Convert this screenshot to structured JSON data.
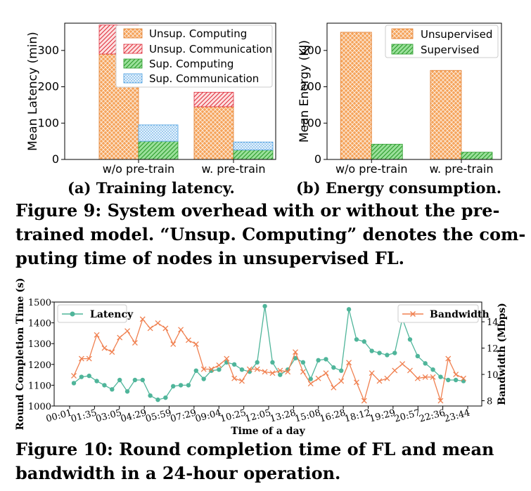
{
  "chart_data": [
    {
      "type": "bar",
      "stacked": true,
      "categories": [
        "w/o pre-train",
        "w. pre-train"
      ],
      "ylabel": "Mean Latency (min)",
      "ylim": [
        0,
        375
      ],
      "yticks": [
        0,
        100,
        200,
        300
      ],
      "series": [
        {
          "name": "Unsup. Computing",
          "group": "unsupervised",
          "values": [
            290,
            145
          ],
          "color": "#f5a35a",
          "hatch": "cross"
        },
        {
          "name": "Unsup. Communication",
          "group": "unsupervised",
          "values": [
            80,
            40
          ],
          "color": "#e8394a",
          "hatch": "diag"
        },
        {
          "name": "Sup. Computing",
          "group": "supervised",
          "values": [
            50,
            26
          ],
          "color": "#3fbf3f",
          "hatch": "diag"
        },
        {
          "name": "Sup. Communication",
          "group": "supervised",
          "values": [
            45,
            22
          ],
          "color": "#56aee8",
          "hatch": "dots"
        }
      ],
      "subcaption": "(a) Training latency."
    },
    {
      "type": "bar",
      "categories": [
        "w/o pre-train",
        "w. pre-train"
      ],
      "ylabel": "Mean Energy (KJ)",
      "ylim": [
        0,
        375
      ],
      "yticks": [
        0,
        100,
        200,
        300
      ],
      "series": [
        {
          "name": "Unsupervised",
          "values": [
            350,
            245
          ],
          "color": "#f5a35a",
          "hatch": "cross"
        },
        {
          "name": "Supervised",
          "values": [
            42,
            20
          ],
          "color": "#3fbf3f",
          "hatch": "diag"
        }
      ],
      "subcaption": "(b) Energy consumption."
    },
    {
      "type": "line",
      "xlabel": "Time of a day",
      "ylabel": "Round Completion Time (s)",
      "y2label": "Bandwidth (Mbps)",
      "ylim": [
        1000,
        1500
      ],
      "yticks": [
        1000,
        1100,
        1200,
        1300,
        1400,
        1500
      ],
      "y2lim": [
        7.6,
        15.5
      ],
      "y2ticks": [
        8,
        10,
        12,
        14
      ],
      "xtick_labels": [
        "00:01",
        "01:35",
        "03:05",
        "04:29",
        "05:59",
        "07:29",
        "09:04",
        "10:25",
        "12:05",
        "13:28",
        "15:08",
        "16:28",
        "18:12",
        "19:29",
        "20:57",
        "22:36",
        "23:44"
      ],
      "series": [
        {
          "name": "Latency",
          "axis": "left",
          "color": "#4fb59a",
          "marker": "circle",
          "values": [
            1110,
            1140,
            1145,
            1120,
            1100,
            1080,
            1125,
            1070,
            1125,
            1125,
            1050,
            1030,
            1040,
            1095,
            1100,
            1100,
            1170,
            1130,
            1170,
            1175,
            1210,
            1200,
            1175,
            1165,
            1210,
            1480,
            1210,
            1150,
            1175,
            1230,
            1210,
            1130,
            1220,
            1225,
            1185,
            1170,
            1465,
            1320,
            1310,
            1265,
            1255,
            1245,
            1255,
            1420,
            1320,
            1240,
            1205,
            1175,
            1140,
            1125,
            1125,
            1120
          ]
        },
        {
          "name": "Bandwidth",
          "axis": "right",
          "color": "#f08050",
          "marker": "x",
          "values": [
            9.9,
            11.2,
            11.2,
            13.0,
            12.0,
            11.7,
            12.8,
            13.3,
            12.4,
            14.2,
            13.5,
            13.9,
            13.5,
            12.3,
            13.4,
            12.6,
            12.3,
            10.4,
            10.4,
            10.7,
            11.2,
            9.7,
            9.5,
            10.4,
            10.4,
            10.2,
            10.1,
            10.3,
            10.2,
            11.7,
            10.2,
            9.3,
            9.7,
            10.1,
            9.0,
            9.5,
            10.9,
            9.4,
            8.0,
            10.1,
            9.5,
            9.7,
            10.3,
            10.8,
            10.3,
            9.7,
            9.8,
            9.8,
            8.0,
            11.2,
            10.0,
            9.7
          ]
        }
      ]
    }
  ],
  "captions": {
    "fig9_line1": "Figure 9: System overhead with or without the pre-",
    "fig9_line2": "trained model. “Unsup. Computing” denotes the com-",
    "fig9_line3": "puting time of nodes in unsupervised FL.",
    "fig10_line1": "Figure 10: Round completion time of FL and mean",
    "fig10_line2": "bandwidth in a 24-hour operation."
  }
}
